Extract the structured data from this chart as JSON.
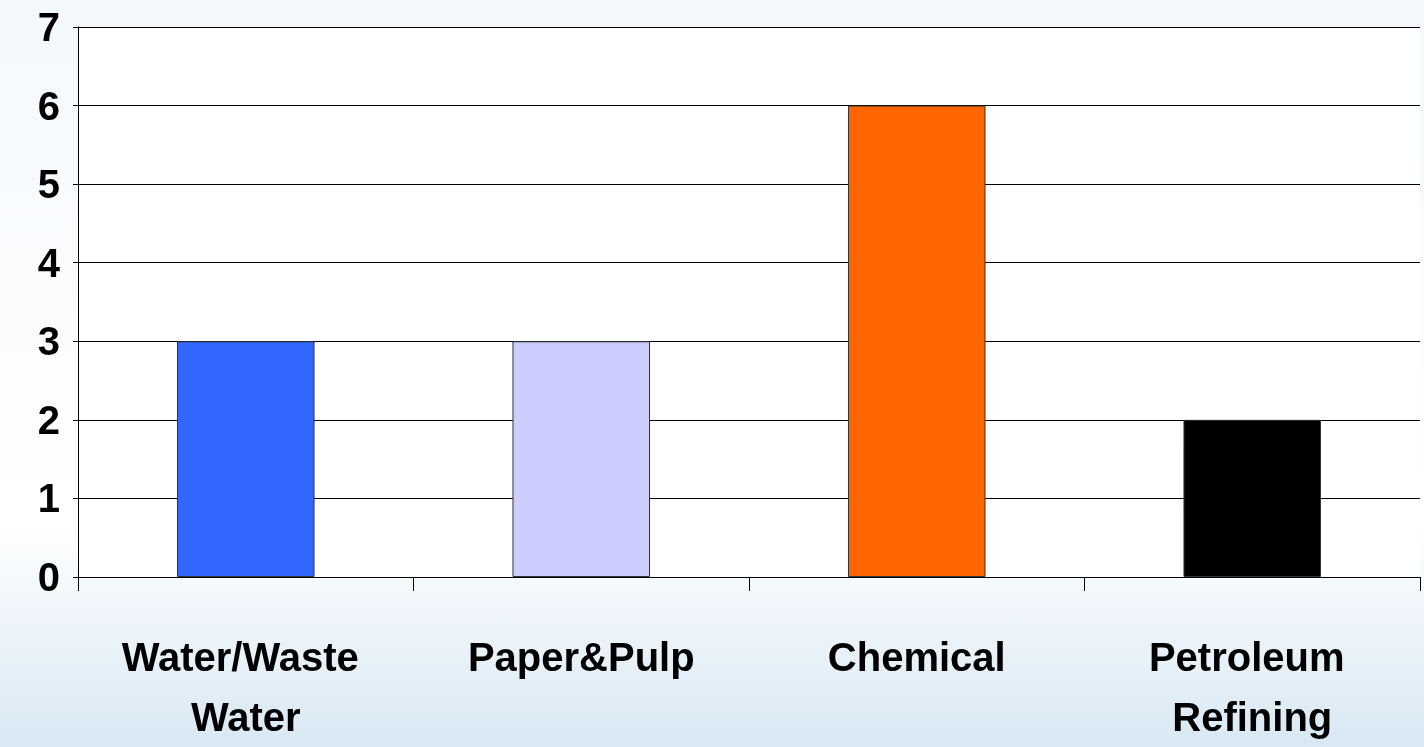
{
  "chart_data": {
    "type": "bar",
    "categories": [
      "Water/Waste Water",
      "Paper&Pulp",
      "Chemical",
      "Petroleum Refining"
    ],
    "values": [
      3,
      3,
      6,
      2
    ],
    "colors": [
      "#3366ff",
      "#ccccff",
      "#ff6600",
      "#000000"
    ],
    "ylim": [
      0,
      7
    ],
    "yticks": [
      0,
      1,
      2,
      3,
      4,
      5,
      6,
      7
    ],
    "grid": "y"
  }
}
